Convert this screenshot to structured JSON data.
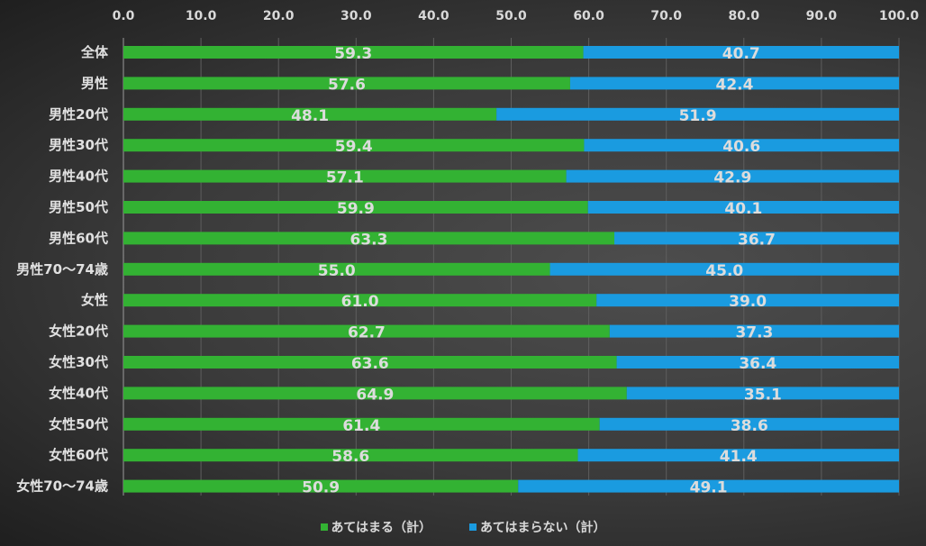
{
  "chart_data": {
    "type": "bar",
    "orientation": "horizontal",
    "stacked": true,
    "xlim": [
      0,
      100
    ],
    "x_ticks": [
      "0.0",
      "10.0",
      "20.0",
      "30.0",
      "40.0",
      "50.0",
      "60.0",
      "70.0",
      "80.0",
      "90.0",
      "100.0"
    ],
    "x_axis_position": "top",
    "grid": true,
    "legend_position": "bottom",
    "categories": [
      "全体",
      "男性",
      "男性20代",
      "男性30代",
      "男性40代",
      "男性50代",
      "男性60代",
      "男性70～74歳",
      "女性",
      "女性20代",
      "女性30代",
      "女性40代",
      "女性50代",
      "女性60代",
      "女性70～74歳"
    ],
    "series": [
      {
        "name": "あてはまる（計）",
        "color": "#33b233",
        "values": [
          59.3,
          57.6,
          48.1,
          59.4,
          57.1,
          59.9,
          63.3,
          55.0,
          61.0,
          62.7,
          63.6,
          64.9,
          61.4,
          58.6,
          50.9
        ]
      },
      {
        "name": "あてはまらない（計）",
        "color": "#1a9be0",
        "values": [
          40.7,
          42.4,
          51.9,
          40.6,
          42.9,
          40.1,
          36.7,
          45.0,
          39.0,
          37.3,
          36.4,
          35.1,
          38.6,
          41.4,
          49.1
        ]
      }
    ]
  }
}
